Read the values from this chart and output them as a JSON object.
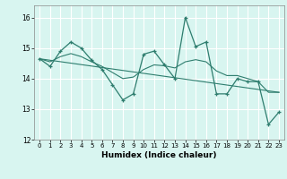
{
  "xlabel": "Humidex (Indice chaleur)",
  "xlim": [
    -0.5,
    23.5
  ],
  "ylim": [
    12,
    16.4
  ],
  "yticks": [
    12,
    13,
    14,
    15,
    16
  ],
  "xticks": [
    0,
    1,
    2,
    3,
    4,
    5,
    6,
    7,
    8,
    9,
    10,
    11,
    12,
    13,
    14,
    15,
    16,
    17,
    18,
    19,
    20,
    21,
    22,
    23
  ],
  "background_color": "#d8f5f0",
  "grid_color": "#ffffff",
  "line_color": "#2e7d6e",
  "line1_x": [
    0,
    1,
    2,
    3,
    4,
    5,
    6,
    7,
    8,
    9,
    10,
    11,
    12,
    13,
    14,
    15,
    16,
    17,
    18,
    19,
    20,
    21,
    22,
    23
  ],
  "line1_y": [
    14.65,
    14.4,
    14.9,
    15.2,
    15.0,
    14.6,
    14.3,
    13.8,
    13.3,
    13.5,
    14.8,
    14.9,
    14.45,
    14.0,
    16.0,
    15.05,
    15.2,
    13.5,
    13.5,
    14.0,
    13.9,
    13.9,
    12.5,
    12.9
  ],
  "trend_x": [
    0,
    23
  ],
  "trend_y": [
    14.65,
    13.55
  ],
  "smooth_x": [
    0,
    1,
    2,
    3,
    4,
    5,
    6,
    7,
    8,
    9,
    10,
    11,
    12,
    13,
    14,
    15,
    16,
    17,
    18,
    19,
    20,
    21,
    22,
    23
  ],
  "smooth_y": [
    14.65,
    14.55,
    14.72,
    14.82,
    14.72,
    14.55,
    14.4,
    14.2,
    14.0,
    14.05,
    14.3,
    14.45,
    14.42,
    14.35,
    14.55,
    14.62,
    14.55,
    14.25,
    14.1,
    14.1,
    14.0,
    13.9,
    13.55,
    13.55
  ]
}
